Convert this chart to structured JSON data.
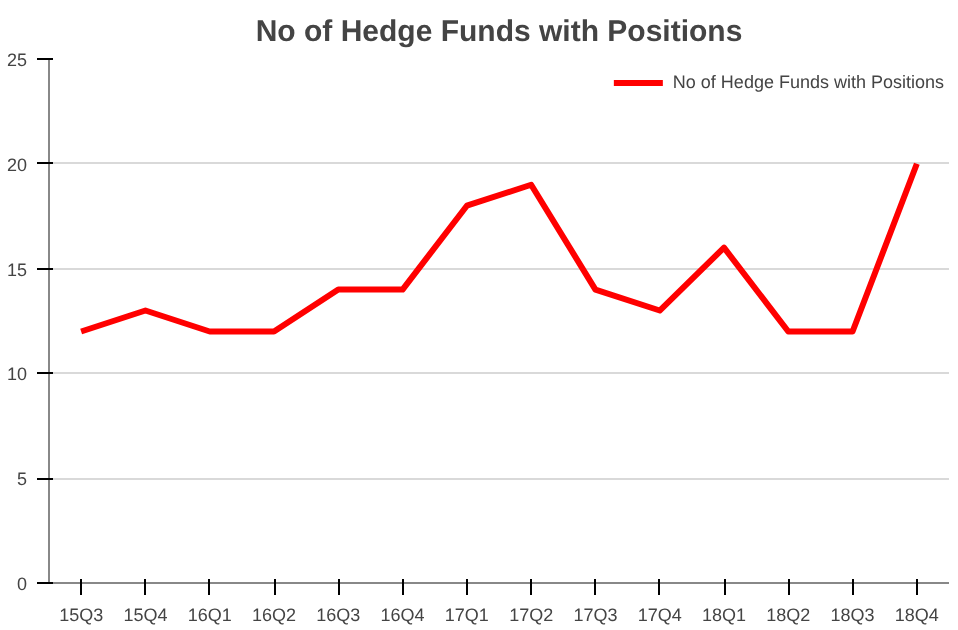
{
  "chart_data": {
    "type": "line",
    "title": "No of Hedge Funds with Positions",
    "categories": [
      "15Q3",
      "15Q4",
      "16Q1",
      "16Q2",
      "16Q3",
      "16Q4",
      "17Q1",
      "17Q2",
      "17Q3",
      "17Q4",
      "18Q1",
      "18Q2",
      "18Q3",
      "18Q4"
    ],
    "series": [
      {
        "name": "No of Hedge Funds with Positions",
        "color": "#ff0000",
        "values": [
          12,
          13,
          12,
          12,
          14,
          14,
          18,
          19,
          14,
          13,
          16,
          12,
          12,
          20
        ]
      }
    ],
    "ylim": [
      0,
      25
    ],
    "yticks": [
      0,
      5,
      10,
      15,
      20,
      25
    ],
    "grid": "y",
    "legend": "top right",
    "line_style": "solid",
    "marker": "none"
  }
}
